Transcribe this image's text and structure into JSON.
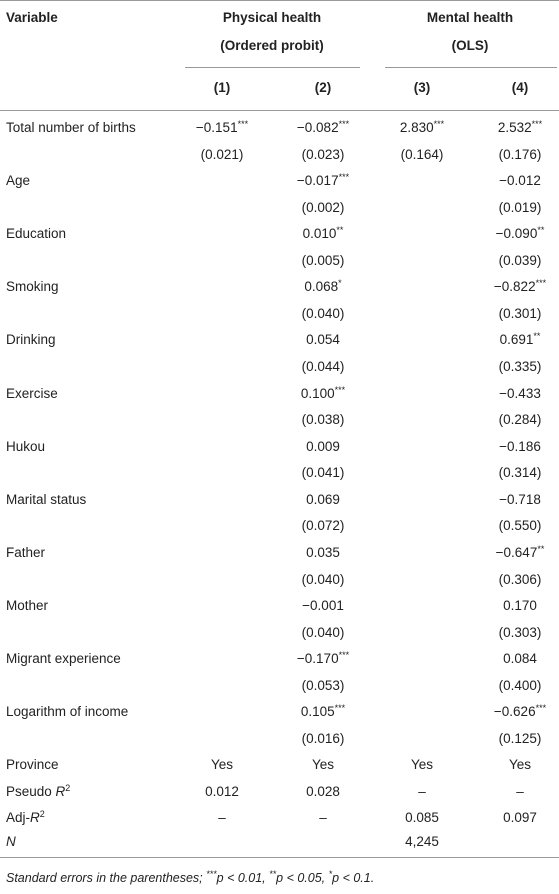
{
  "header": {
    "variable": "Variable",
    "groups": [
      {
        "title": "Physical health",
        "subtitle": "(Ordered probit)"
      },
      {
        "title": "Mental health",
        "subtitle": "(OLS)"
      }
    ],
    "columns": [
      "(1)",
      "(2)",
      "(3)",
      "(4)"
    ]
  },
  "rows": [
    {
      "label": "Total number of births",
      "coef": [
        {
          "v": "−0.151",
          "s": "***"
        },
        {
          "v": "−0.082",
          "s": "***"
        },
        {
          "v": "2.830",
          "s": "***"
        },
        {
          "v": "2.532",
          "s": "***"
        }
      ],
      "se": [
        "(0.021)",
        "(0.023)",
        "(0.164)",
        "(0.176)"
      ]
    },
    {
      "label": "Age",
      "coef": [
        null,
        {
          "v": "−0.017",
          "s": "***"
        },
        null,
        {
          "v": "−0.012"
        }
      ],
      "se": [
        null,
        "(0.002)",
        null,
        "(0.019)"
      ]
    },
    {
      "label": "Education",
      "coef": [
        null,
        {
          "v": "0.010",
          "s": "**"
        },
        null,
        {
          "v": "−0.090",
          "s": "**"
        }
      ],
      "se": [
        null,
        "(0.005)",
        null,
        "(0.039)"
      ]
    },
    {
      "label": "Smoking",
      "coef": [
        null,
        {
          "v": "0.068",
          "s": "*"
        },
        null,
        {
          "v": "−0.822",
          "s": "***"
        }
      ],
      "se": [
        null,
        "(0.040)",
        null,
        "(0.301)"
      ]
    },
    {
      "label": "Drinking",
      "coef": [
        null,
        {
          "v": "0.054"
        },
        null,
        {
          "v": "0.691",
          "s": "**"
        }
      ],
      "se": [
        null,
        "(0.044)",
        null,
        "(0.335)"
      ]
    },
    {
      "label": "Exercise",
      "coef": [
        null,
        {
          "v": "0.100",
          "s": "***"
        },
        null,
        {
          "v": "−0.433"
        }
      ],
      "se": [
        null,
        "(0.038)",
        null,
        "(0.284)"
      ]
    },
    {
      "label": "Hukou",
      "coef": [
        null,
        {
          "v": "0.009"
        },
        null,
        {
          "v": "−0.186"
        }
      ],
      "se": [
        null,
        "(0.041)",
        null,
        "(0.314)"
      ]
    },
    {
      "label": "Marital status",
      "coef": [
        null,
        {
          "v": "0.069"
        },
        null,
        {
          "v": "−0.718"
        }
      ],
      "se": [
        null,
        "(0.072)",
        null,
        "(0.550)"
      ]
    },
    {
      "label": "Father",
      "coef": [
        null,
        {
          "v": "0.035"
        },
        null,
        {
          "v": "−0.647",
          "s": "**"
        }
      ],
      "se": [
        null,
        "(0.040)",
        null,
        "(0.306)"
      ]
    },
    {
      "label": "Mother",
      "coef": [
        null,
        {
          "v": "−0.001"
        },
        null,
        {
          "v": "0.170"
        }
      ],
      "se": [
        null,
        "(0.040)",
        null,
        "(0.303)"
      ]
    },
    {
      "label": "Migrant experience",
      "coef": [
        null,
        {
          "v": "−0.170",
          "s": "***"
        },
        null,
        {
          "v": "0.084"
        }
      ],
      "se": [
        null,
        "(0.053)",
        null,
        "(0.400)"
      ]
    },
    {
      "label": "Logarithm of income",
      "coef": [
        null,
        {
          "v": "0.105",
          "s": "***"
        },
        null,
        {
          "v": "−0.626",
          "s": "***"
        }
      ],
      "se": [
        null,
        "(0.016)",
        null,
        "(0.125)"
      ]
    }
  ],
  "stats": [
    {
      "label": [
        {
          "text": "Province"
        }
      ],
      "cells": [
        "Yes",
        "Yes",
        "Yes",
        "Yes"
      ]
    },
    {
      "label": [
        {
          "text": "Pseudo "
        },
        {
          "text": "R",
          "style": "italic"
        },
        {
          "text": "2",
          "style": "sup"
        }
      ],
      "cells": [
        "0.012",
        "0.028",
        "–",
        "–"
      ]
    },
    {
      "label": [
        {
          "text": "Adj-"
        },
        {
          "text": "R",
          "style": "italic"
        },
        {
          "text": "2",
          "style": "sup"
        }
      ],
      "cells": [
        "–",
        "–",
        "0.085",
        "0.097"
      ]
    },
    {
      "label": [
        {
          "text": "N",
          "style": "italic"
        }
      ],
      "cells": [
        null,
        null,
        "4,245",
        null
      ]
    }
  ],
  "footnote": [
    {
      "text": "Standard errors in the parentheses; "
    },
    {
      "text": "***",
      "style": "sup"
    },
    {
      "text": "p"
    },
    {
      "text": " < 0.01, "
    },
    {
      "text": "**",
      "style": "sup"
    },
    {
      "text": "p"
    },
    {
      "text": " < 0.05, "
    },
    {
      "text": "*",
      "style": "sup"
    },
    {
      "text": "p"
    },
    {
      "text": " < 0.1."
    }
  ]
}
